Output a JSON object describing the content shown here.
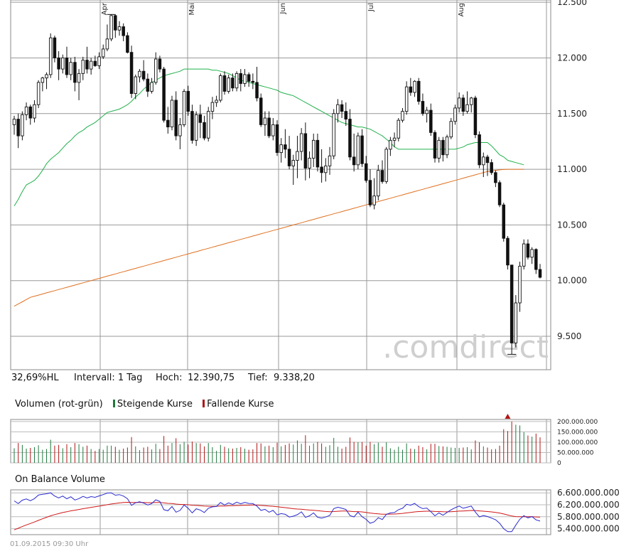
{
  "chart_data": [
    {
      "type": "candlestick",
      "x_ticks": [
        "Apr",
        "Mai",
        "Jun",
        "Jul",
        "Aug"
      ],
      "y_ticks": [
        "12.500",
        "12.000",
        "11.500",
        "11.000",
        "10.500",
        "10.000",
        "9.500"
      ],
      "ylim": [
        9200,
        12520
      ],
      "grid": true,
      "watermark": ".comdirect",
      "ohlc": [
        [
          11400,
          11480,
          11310,
          11450
        ],
        [
          11450,
          11500,
          11190,
          11300
        ],
        [
          11300,
          11520,
          11260,
          11490
        ],
        [
          11490,
          11600,
          11440,
          11560
        ],
        [
          11560,
          11580,
          11400,
          11460
        ],
        [
          11460,
          11620,
          11420,
          11580
        ],
        [
          11580,
          11800,
          11550,
          11780
        ],
        [
          11780,
          11830,
          11700,
          11820
        ],
        [
          11820,
          11870,
          11720,
          11850
        ],
        [
          11850,
          12220,
          11820,
          12180
        ],
        [
          12180,
          12200,
          11960,
          12000
        ],
        [
          12000,
          12060,
          11800,
          11900
        ],
        [
          11900,
          12030,
          11860,
          12000
        ],
        [
          12000,
          12100,
          11820,
          11850
        ],
        [
          11850,
          12000,
          11800,
          11960
        ],
        [
          11960,
          12010,
          11700,
          11780
        ],
        [
          11780,
          11900,
          11620,
          11860
        ],
        [
          11860,
          12010,
          11800,
          11980
        ],
        [
          11980,
          12100,
          11860,
          11900
        ],
        [
          11900,
          12000,
          11850,
          11970
        ],
        [
          11970,
          12020,
          11920,
          11930
        ],
        [
          11930,
          12050,
          11900,
          12010
        ],
        [
          12010,
          12120,
          11990,
          12080
        ],
        [
          12080,
          12300,
          12060,
          12170
        ],
        [
          12170,
          12390,
          12150,
          12380
        ],
        [
          12380,
          12390,
          12180,
          12250
        ],
        [
          12250,
          12330,
          12200,
          12280
        ],
        [
          12280,
          12310,
          12150,
          12200
        ],
        [
          12200,
          12230,
          12040,
          12050
        ],
        [
          12050,
          12110,
          11640,
          11680
        ],
        [
          11680,
          11850,
          11630,
          11830
        ],
        [
          11830,
          11900,
          11780,
          11880
        ],
        [
          11880,
          11980,
          11790,
          11810
        ],
        [
          11810,
          11860,
          11650,
          11700
        ],
        [
          11700,
          11820,
          11680,
          11780
        ],
        [
          11780,
          12050,
          11760,
          11990
        ],
        [
          11990,
          12020,
          11870,
          11900
        ],
        [
          11900,
          11920,
          11420,
          11440
        ],
        [
          11440,
          11560,
          11320,
          11380
        ],
        [
          11380,
          11660,
          11350,
          11620
        ],
        [
          11620,
          11700,
          11260,
          11300
        ],
        [
          11300,
          11460,
          11180,
          11400
        ],
        [
          11400,
          11720,
          11380,
          11700
        ],
        [
          11700,
          11750,
          11480,
          11520
        ],
        [
          11520,
          11580,
          11230,
          11260
        ],
        [
          11260,
          11520,
          11210,
          11490
        ],
        [
          11490,
          11580,
          11280,
          11420
        ],
        [
          11420,
          11480,
          11260,
          11280
        ],
        [
          11280,
          11560,
          11250,
          11520
        ],
        [
          11520,
          11650,
          11450,
          11600
        ],
        [
          11600,
          11660,
          11560,
          11620
        ],
        [
          11620,
          11860,
          11600,
          11840
        ],
        [
          11840,
          11880,
          11670,
          11700
        ],
        [
          11700,
          11850,
          11680,
          11820
        ],
        [
          11820,
          11860,
          11700,
          11730
        ],
        [
          11730,
          11880,
          11700,
          11860
        ],
        [
          11860,
          11900,
          11700,
          11770
        ],
        [
          11770,
          11900,
          11740,
          11850
        ],
        [
          11850,
          11870,
          11740,
          11790
        ],
        [
          11790,
          11860,
          11720,
          11780
        ],
        [
          11780,
          11920,
          11610,
          11640
        ],
        [
          11640,
          11680,
          11380,
          11400
        ],
        [
          11400,
          11520,
          11300,
          11460
        ],
        [
          11460,
          11520,
          11280,
          11300
        ],
        [
          11300,
          11460,
          11260,
          11400
        ],
        [
          11400,
          11440,
          11120,
          11150
        ],
        [
          11150,
          11280,
          11060,
          11220
        ],
        [
          11220,
          11360,
          11100,
          11180
        ],
        [
          11180,
          11300,
          11000,
          11030
        ],
        [
          11030,
          11130,
          10860,
          11080
        ],
        [
          11080,
          11300,
          10920,
          11160
        ],
        [
          11160,
          11370,
          11080,
          11320
        ],
        [
          11320,
          11420,
          10900,
          11010
        ],
        [
          11010,
          11160,
          10920,
          11100
        ],
        [
          11100,
          11320,
          11020,
          11260
        ],
        [
          11260,
          11320,
          10980,
          11020
        ],
        [
          11020,
          11180,
          10880,
          10970
        ],
        [
          10970,
          11100,
          10890,
          11030
        ],
        [
          11030,
          11200,
          10950,
          11120
        ],
        [
          11120,
          11540,
          11090,
          11500
        ],
        [
          11500,
          11630,
          11420,
          11580
        ],
        [
          11580,
          11620,
          11460,
          11520
        ],
        [
          11520,
          11600,
          11390,
          11450
        ],
        [
          11450,
          11540,
          11080,
          11110
        ],
        [
          11110,
          11320,
          10980,
          11040
        ],
        [
          11040,
          11330,
          11000,
          11300
        ],
        [
          11300,
          11360,
          11020,
          11050
        ],
        [
          11050,
          11120,
          10880,
          10900
        ],
        [
          10900,
          11000,
          10660,
          10680
        ],
        [
          10680,
          10920,
          10640,
          10760
        ],
        [
          10760,
          11040,
          10720,
          10990
        ],
        [
          10990,
          11080,
          10870,
          10890
        ],
        [
          10890,
          11200,
          10870,
          11180
        ],
        [
          11180,
          11290,
          11120,
          11260
        ],
        [
          11260,
          11330,
          11200,
          11280
        ],
        [
          11280,
          11460,
          11250,
          11440
        ],
        [
          11440,
          11550,
          11420,
          11520
        ],
        [
          11520,
          11790,
          11490,
          11740
        ],
        [
          11740,
          11820,
          11660,
          11690
        ],
        [
          11690,
          11800,
          11650,
          11790
        ],
        [
          11790,
          11820,
          11580,
          11610
        ],
        [
          11610,
          11680,
          11480,
          11500
        ],
        [
          11500,
          11560,
          11420,
          11530
        ],
        [
          11530,
          11590,
          11300,
          11330
        ],
        [
          11330,
          11350,
          11060,
          11100
        ],
        [
          11100,
          11290,
          11060,
          11260
        ],
        [
          11260,
          11290,
          11070,
          11130
        ],
        [
          11130,
          11310,
          11100,
          11290
        ],
        [
          11290,
          11460,
          11270,
          11430
        ],
        [
          11430,
          11580,
          11400,
          11550
        ],
        [
          11550,
          11690,
          11510,
          11640
        ],
        [
          11640,
          11670,
          11480,
          11520
        ],
        [
          11520,
          11700,
          11500,
          11580
        ],
        [
          11580,
          11650,
          11510,
          11640
        ],
        [
          11640,
          11660,
          11280,
          11310
        ],
        [
          11310,
          11340,
          11010,
          11040
        ],
        [
          11040,
          11150,
          10930,
          11110
        ],
        [
          11110,
          11130,
          10940,
          11060
        ],
        [
          11060,
          11090,
          10950,
          10970
        ],
        [
          10970,
          10990,
          10840,
          10880
        ],
        [
          10880,
          10900,
          10660,
          10680
        ],
        [
          10680,
          10700,
          10350,
          10380
        ],
        [
          10380,
          10400,
          10100,
          10140
        ],
        [
          10140,
          10140,
          9338,
          9440
        ],
        [
          9440,
          9870,
          9400,
          9800
        ],
        [
          9800,
          10170,
          9720,
          10130
        ],
        [
          10130,
          10370,
          10100,
          10330
        ],
        [
          10330,
          10370,
          10190,
          10210
        ],
        [
          10210,
          10300,
          10150,
          10280
        ],
        [
          10280,
          10290,
          10060,
          10100
        ],
        [
          10100,
          10150,
          10020,
          10030
        ]
      ],
      "series": [
        {
          "name": "",
          "values": [
            10670,
            10730,
            10800,
            10860,
            10880,
            10900,
            10940,
            10990,
            11050,
            11090,
            11120,
            11150,
            11190,
            11230,
            11260,
            11300,
            11330,
            11350,
            11380,
            11400,
            11420,
            11450,
            11480,
            11510,
            11520,
            11530,
            11540,
            11560,
            11580,
            11610,
            11650,
            11680,
            11720,
            11750,
            11780,
            11800,
            11820,
            11840,
            11850,
            11860,
            11870,
            11880,
            11900,
            11900,
            11900,
            11900,
            11900,
            11900,
            11900,
            11890,
            11890,
            11880,
            11870,
            11860,
            11840,
            11820,
            11800,
            11790,
            11780,
            11770,
            11760,
            11750,
            11740,
            11730,
            11720,
            11710,
            11690,
            11680,
            11670,
            11660,
            11640,
            11620,
            11600,
            11580,
            11560,
            11540,
            11520,
            11500,
            11480,
            11460,
            11440,
            11420,
            11410,
            11400,
            11390,
            11380,
            11380,
            11370,
            11360,
            11340,
            11320,
            11300,
            11270,
            11240,
            11200,
            11180,
            11180,
            11180,
            11180,
            11180,
            11180,
            11180,
            11180,
            11180,
            11180,
            11180,
            11180,
            11180,
            11180,
            11180,
            11190,
            11200,
            11220,
            11230,
            11240,
            11240,
            11240,
            11240,
            11210,
            11170,
            11130,
            11110,
            11080,
            11070,
            11060,
            11050,
            11040
          ]
        },
        {
          "name": "",
          "values": [
            9770,
            9790,
            9810,
            9830,
            9850,
            9860,
            9870,
            9880,
            9890,
            9900,
            9910,
            9920,
            9930,
            9940,
            9950,
            9960,
            9970,
            9980,
            9990,
            10000,
            10010,
            10020,
            10030,
            10040,
            10050,
            10060,
            10070,
            10080,
            10090,
            10100,
            10110,
            10120,
            10130,
            10140,
            10150,
            10160,
            10170,
            10180,
            10190,
            10200,
            10210,
            10220,
            10230,
            10240,
            10250,
            10260,
            10270,
            10280,
            10290,
            10300,
            10310,
            10320,
            10330,
            10340,
            10350,
            10360,
            10370,
            10380,
            10390,
            10400,
            10410,
            10420,
            10430,
            10440,
            10450,
            10460,
            10470,
            10480,
            10490,
            10500,
            10510,
            10520,
            10530,
            10540,
            10550,
            10560,
            10570,
            10580,
            10590,
            10600,
            10610,
            10620,
            10630,
            10640,
            10650,
            10660,
            10670,
            10680,
            10690,
            10700,
            10710,
            10720,
            10730,
            10740,
            10750,
            10760,
            10770,
            10780,
            10790,
            10800,
            10810,
            10820,
            10830,
            10840,
            10850,
            10860,
            10870,
            10880,
            10890,
            10900,
            10910,
            10920,
            10930,
            10940,
            10950,
            10960,
            10970,
            10980,
            10985,
            10990,
            10995,
            10998,
            11000,
            11000,
            11000,
            11000,
            11000
          ]
        }
      ],
      "colors": {
        "ma_short": "#22b14c",
        "ma_long": "#e07020",
        "up": "#ffffff",
        "down": "#111111"
      }
    },
    {
      "type": "bar",
      "title": "Volumen (rot-grün)",
      "y_ticks": [
        "200.000.000",
        "150.000.000",
        "100.000.000",
        "50.000.000",
        "0"
      ],
      "ylim": [
        0,
        210000000
      ],
      "colors": {
        "up": "#1e7a3c",
        "down": "#b01616"
      }
    },
    {
      "type": "line",
      "title": "On Balance Volume",
      "y_ticks": [
        "6.600.000.000",
        "6.200.000.000",
        "5.800.000.000",
        "5.400.000.000"
      ],
      "ylim": [
        5200000000,
        6700000000
      ],
      "colors": {
        "obv": "#2a2ad0",
        "signal": "#d01818"
      }
    }
  ],
  "info": {
    "range": "32,69%HL",
    "interval": "Intervall: 1 Tag",
    "high_label": "Hoch:",
    "high": "12.390,75",
    "low_label": "Tief:",
    "low": "9.338,20"
  },
  "volume_legend": {
    "title": "Volumen (rot-grün)",
    "up": "Steigende Kurse",
    "down": "Fallende Kurse"
  },
  "obv_title": "On Balance Volume",
  "footer": "01.09.2015 09:30 Uhr"
}
